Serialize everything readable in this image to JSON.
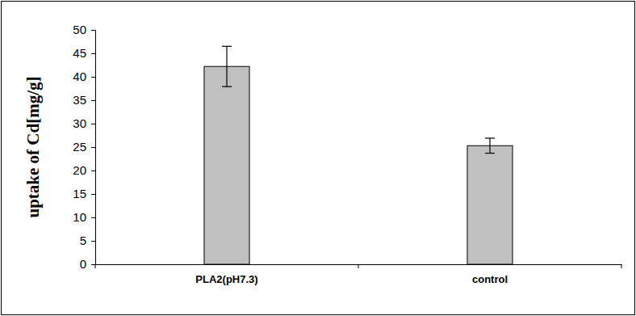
{
  "chart_data": {
    "type": "bar",
    "y_label": "uptake of Cd[mg/g]",
    "categories": [
      "PLA2(pH7.3)",
      "control"
    ],
    "values": [
      42.2,
      25.3
    ],
    "errors": [
      4.3,
      1.6
    ],
    "color": "#c0c0c0",
    "ylim": [
      0,
      50
    ],
    "yticks": [
      0,
      5,
      10,
      15,
      20,
      25,
      30,
      35,
      40,
      45,
      50
    ],
    "grid": false
  }
}
